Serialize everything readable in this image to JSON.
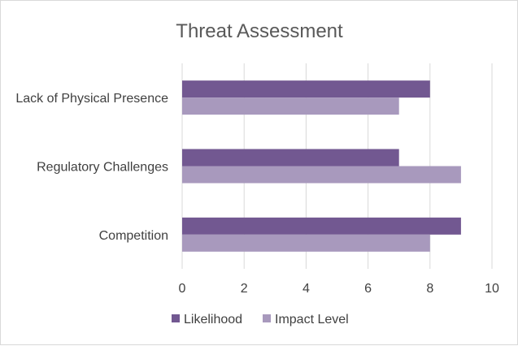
{
  "chart_data": {
    "type": "bar",
    "orientation": "horizontal",
    "title": "Threat Assessment",
    "categories": [
      "Lack of Physical Presence",
      "Regulatory Challenges",
      "Competition"
    ],
    "series": [
      {
        "name": "Likelihood",
        "values": [
          8,
          7,
          9
        ],
        "color": "#725891"
      },
      {
        "name": "Impact Level",
        "values": [
          7,
          9,
          8
        ],
        "color": "#a899bd"
      }
    ],
    "xlim": [
      0,
      10
    ],
    "xticks": [
      "0",
      "2",
      "4",
      "6",
      "8",
      "10"
    ],
    "grid": true,
    "legend_position": "bottom"
  }
}
